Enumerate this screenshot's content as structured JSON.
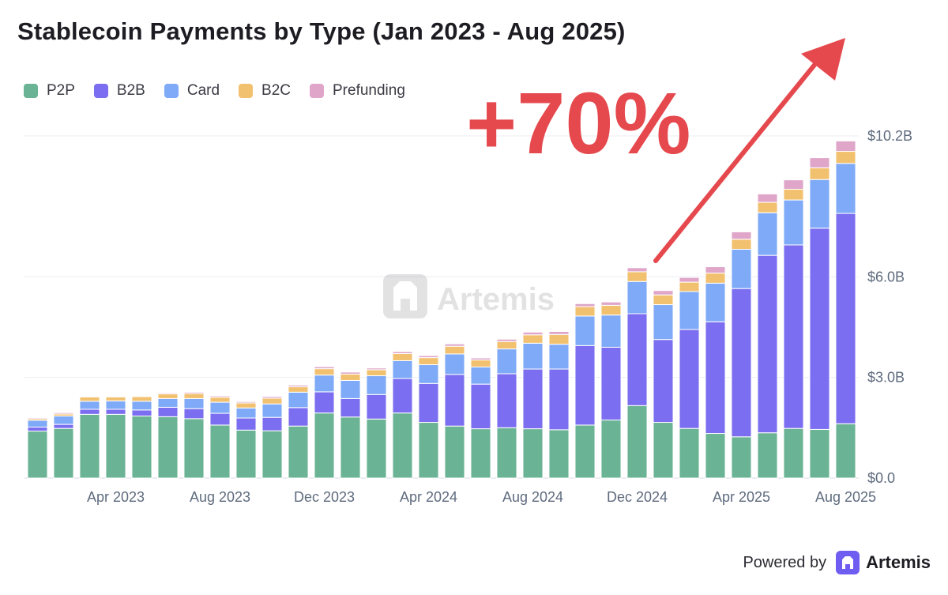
{
  "title": "Stablecoin Payments by Type (Jan 2023 - Aug 2025)",
  "legend": [
    {
      "name": "P2P",
      "color": "#6bb395"
    },
    {
      "name": "B2B",
      "color": "#7b6ef0"
    },
    {
      "name": "Card",
      "color": "#7eaaf7"
    },
    {
      "name": "B2C",
      "color": "#f2c170"
    },
    {
      "name": "Prefunding",
      "color": "#dfa6c9"
    }
  ],
  "annotation": {
    "text": "+70%",
    "color": "#e5484d"
  },
  "watermark": "Artemis",
  "footer": {
    "powered_by": "Powered by",
    "brand": "Artemis"
  },
  "chart_data": {
    "type": "bar",
    "stacked": true,
    "title": "Stablecoin Payments by Type (Jan 2023 - Aug 2025)",
    "categories": [
      "Jan 2023",
      "Feb 2023",
      "Mar 2023",
      "Apr 2023",
      "May 2023",
      "Jun 2023",
      "Jul 2023",
      "Aug 2023",
      "Sep 2023",
      "Oct 2023",
      "Nov 2023",
      "Dec 2023",
      "Jan 2024",
      "Feb 2024",
      "Mar 2024",
      "Apr 2024",
      "May 2024",
      "Jun 2024",
      "Jul 2024",
      "Aug 2024",
      "Sep 2024",
      "Oct 2024",
      "Nov 2024",
      "Dec 2024",
      "Jan 2025",
      "Feb 2025",
      "Mar 2025",
      "Apr 2025",
      "May 2025",
      "Jun 2025",
      "Jul 2025",
      "Aug 2025"
    ],
    "x_tick_labels": [
      {
        "category": "Apr 2023",
        "label": "Apr 2023"
      },
      {
        "category": "Aug 2023",
        "label": "Aug 2023"
      },
      {
        "category": "Dec 2023",
        "label": "Dec 2023"
      },
      {
        "category": "Apr 2024",
        "label": "Apr 2024"
      },
      {
        "category": "Aug 2024",
        "label": "Aug 2024"
      },
      {
        "category": "Dec 2024",
        "label": "Dec 2024"
      },
      {
        "category": "Apr 2025",
        "label": "Apr 2025"
      },
      {
        "category": "Aug 2025",
        "label": "Aug 2025"
      }
    ],
    "y_ticks": [
      {
        "value": 0,
        "label": "$0.0"
      },
      {
        "value": 3.0,
        "label": "$3.0B"
      },
      {
        "value": 6.0,
        "label": "$6.0B"
      },
      {
        "value": 10.2,
        "label": "$10.2B"
      }
    ],
    "ylim": [
      0,
      10.2
    ],
    "ylabel": "",
    "xlabel": "",
    "grid": true,
    "series": [
      {
        "name": "P2P",
        "values": [
          1.4,
          1.48,
          1.9,
          1.9,
          1.85,
          1.83,
          1.77,
          1.58,
          1.43,
          1.41,
          1.55,
          1.94,
          1.82,
          1.76,
          1.94,
          1.66,
          1.55,
          1.47,
          1.5,
          1.47,
          1.44,
          1.58,
          1.73,
          2.16,
          1.66,
          1.48,
          1.33,
          1.23,
          1.35,
          1.48,
          1.45,
          1.62
        ]
      },
      {
        "name": "B2B",
        "values": [
          0.12,
          0.12,
          0.15,
          0.15,
          0.18,
          0.28,
          0.3,
          0.35,
          0.36,
          0.4,
          0.55,
          0.63,
          0.55,
          0.73,
          1.03,
          1.16,
          1.54,
          1.33,
          1.61,
          1.78,
          1.81,
          2.37,
          2.17,
          2.74,
          2.47,
          2.95,
          3.33,
          4.42,
          5.29,
          5.47,
          6.0,
          6.27
        ]
      },
      {
        "name": "Card",
        "values": [
          0.2,
          0.25,
          0.24,
          0.25,
          0.26,
          0.26,
          0.3,
          0.33,
          0.3,
          0.4,
          0.46,
          0.5,
          0.54,
          0.56,
          0.53,
          0.56,
          0.61,
          0.51,
          0.74,
          0.77,
          0.74,
          0.88,
          0.96,
          0.96,
          1.04,
          1.13,
          1.15,
          1.17,
          1.27,
          1.34,
          1.45,
          1.49
        ]
      },
      {
        "name": "B2C",
        "values": [
          0.05,
          0.06,
          0.13,
          0.12,
          0.14,
          0.14,
          0.15,
          0.15,
          0.15,
          0.17,
          0.16,
          0.19,
          0.19,
          0.18,
          0.21,
          0.21,
          0.23,
          0.21,
          0.22,
          0.25,
          0.29,
          0.28,
          0.29,
          0.29,
          0.29,
          0.28,
          0.3,
          0.3,
          0.31,
          0.32,
          0.35,
          0.36
        ]
      },
      {
        "name": "Prefunding",
        "values": [
          0.03,
          0.04,
          0.02,
          0.02,
          0.02,
          0.03,
          0.04,
          0.04,
          0.04,
          0.05,
          0.05,
          0.06,
          0.06,
          0.05,
          0.06,
          0.06,
          0.07,
          0.06,
          0.07,
          0.08,
          0.09,
          0.09,
          0.1,
          0.12,
          0.13,
          0.14,
          0.19,
          0.22,
          0.25,
          0.28,
          0.3,
          0.31
        ]
      }
    ]
  }
}
